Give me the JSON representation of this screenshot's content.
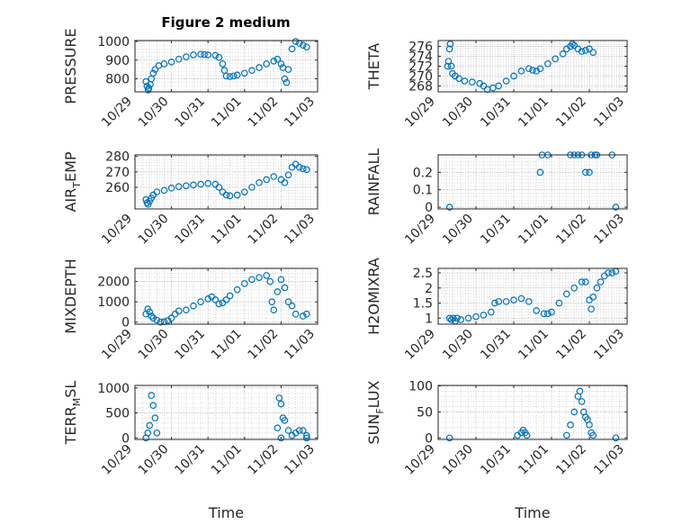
{
  "figure": {
    "title": "Figure 2 medium",
    "marker_color": "#0072BD",
    "grid": "on (major + minor dotted)",
    "layout": "4 rows x 2 columns"
  },
  "chart_data": [
    {
      "type": "scatter",
      "ylabel": "PRESSURE",
      "ylim": [
        730,
        1005
      ],
      "yticks": [
        800,
        900,
        1000
      ],
      "xlim": [
        "10/29",
        "11/03"
      ],
      "xticks": [
        "10/29",
        "10/30",
        "10/31",
        "11/01",
        "11/02",
        "11/03"
      ],
      "xlabel": "",
      "points": [
        [
          0.3,
          785
        ],
        [
          0.33,
          760
        ],
        [
          0.36,
          740
        ],
        [
          0.38,
          750
        ],
        [
          0.42,
          770
        ],
        [
          0.45,
          800
        ],
        [
          0.5,
          830
        ],
        [
          0.55,
          850
        ],
        [
          0.65,
          870
        ],
        [
          0.8,
          880
        ],
        [
          1.0,
          890
        ],
        [
          1.2,
          905
        ],
        [
          1.4,
          918
        ],
        [
          1.6,
          928
        ],
        [
          1.8,
          932
        ],
        [
          1.9,
          930
        ],
        [
          2.0,
          928
        ],
        [
          2.2,
          925
        ],
        [
          2.3,
          915
        ],
        [
          2.4,
          880
        ],
        [
          2.45,
          845
        ],
        [
          2.5,
          815
        ],
        [
          2.6,
          812
        ],
        [
          2.7,
          815
        ],
        [
          2.8,
          820
        ],
        [
          3.0,
          830
        ],
        [
          3.2,
          845
        ],
        [
          3.4,
          860
        ],
        [
          3.6,
          880
        ],
        [
          3.8,
          895
        ],
        [
          3.9,
          905
        ],
        [
          4.0,
          880
        ],
        [
          4.05,
          860
        ],
        [
          4.1,
          800
        ],
        [
          4.15,
          780
        ],
        [
          4.2,
          850
        ],
        [
          4.3,
          960
        ],
        [
          4.4,
          1000
        ],
        [
          4.5,
          990
        ],
        [
          4.6,
          980
        ],
        [
          4.7,
          970
        ]
      ]
    },
    {
      "type": "scatter",
      "ylabel": "THETA",
      "ylim": [
        266.8,
        277.2
      ],
      "yticks": [
        268,
        270,
        272,
        274,
        276
      ],
      "xlim": [
        "10/29",
        "11/03"
      ],
      "xticks": [
        "10/29",
        "10/30",
        "10/31",
        "11/01",
        "11/02",
        "11/03"
      ],
      "xlabel": "",
      "points": [
        [
          0.25,
          272
        ],
        [
          0.27,
          273
        ],
        [
          0.3,
          275.5
        ],
        [
          0.32,
          276.5
        ],
        [
          0.35,
          272
        ],
        [
          0.38,
          270.5
        ],
        [
          0.45,
          270
        ],
        [
          0.55,
          269.5
        ],
        [
          0.7,
          269
        ],
        [
          0.9,
          268.8
        ],
        [
          1.1,
          268.5
        ],
        [
          1.2,
          268
        ],
        [
          1.3,
          267.3
        ],
        [
          1.45,
          267.6
        ],
        [
          1.6,
          268
        ],
        [
          1.8,
          269
        ],
        [
          2.0,
          270
        ],
        [
          2.2,
          271
        ],
        [
          2.4,
          271.5
        ],
        [
          2.5,
          271.2
        ],
        [
          2.6,
          271
        ],
        [
          2.7,
          271.5
        ],
        [
          2.9,
          272.5
        ],
        [
          3.1,
          273.5
        ],
        [
          3.3,
          274.5
        ],
        [
          3.4,
          275.5
        ],
        [
          3.5,
          276
        ],
        [
          3.55,
          276.5
        ],
        [
          3.6,
          276.2
        ],
        [
          3.7,
          275.5
        ],
        [
          3.8,
          275
        ],
        [
          3.9,
          275.2
        ],
        [
          4.0,
          275.5
        ],
        [
          4.1,
          274.8
        ]
      ]
    },
    {
      "type": "scatter",
      "ylabel": "AIR_TEMP",
      "ylim": [
        246,
        281
      ],
      "yticks": [
        260,
        270,
        280
      ],
      "xlim": [
        "10/29",
        "11/03"
      ],
      "xticks": [
        "10/29",
        "10/30",
        "10/31",
        "11/01",
        "11/02",
        "11/03"
      ],
      "xlabel": "",
      "points": [
        [
          0.3,
          252
        ],
        [
          0.33,
          250
        ],
        [
          0.36,
          249
        ],
        [
          0.4,
          251
        ],
        [
          0.45,
          253
        ],
        [
          0.5,
          255
        ],
        [
          0.6,
          257
        ],
        [
          0.8,
          258
        ],
        [
          1.0,
          259.5
        ],
        [
          1.2,
          260.5
        ],
        [
          1.4,
          261
        ],
        [
          1.6,
          261.5
        ],
        [
          1.8,
          262
        ],
        [
          2.0,
          262.5
        ],
        [
          2.2,
          262
        ],
        [
          2.3,
          260
        ],
        [
          2.4,
          257
        ],
        [
          2.5,
          255
        ],
        [
          2.6,
          254.5
        ],
        [
          2.8,
          255
        ],
        [
          3.0,
          257
        ],
        [
          3.2,
          260
        ],
        [
          3.4,
          263
        ],
        [
          3.6,
          265
        ],
        [
          3.8,
          267
        ],
        [
          4.0,
          265
        ],
        [
          4.1,
          263
        ],
        [
          4.2,
          268
        ],
        [
          4.3,
          273
        ],
        [
          4.4,
          275
        ],
        [
          4.5,
          273
        ],
        [
          4.6,
          272
        ],
        [
          4.7,
          271.5
        ]
      ]
    },
    {
      "type": "scatter",
      "ylabel": "RAINFALL",
      "ylim": [
        -0.01,
        0.3
      ],
      "yticks": [
        0,
        0.1,
        0.2
      ],
      "xlim": [
        "10/29",
        "11/03"
      ],
      "xticks": [
        "10/29",
        "10/30",
        "10/31",
        "11/01",
        "11/02",
        "11/03"
      ],
      "xlabel": "",
      "points": [
        [
          0.3,
          0
        ],
        [
          4.7,
          0
        ],
        [
          2.7,
          0.2
        ],
        [
          2.75,
          0.3
        ],
        [
          2.9,
          0.3
        ],
        [
          3.5,
          0.3
        ],
        [
          3.6,
          0.3
        ],
        [
          3.7,
          0.3
        ],
        [
          3.8,
          0.3
        ],
        [
          3.9,
          0.2
        ],
        [
          4.0,
          0.2
        ],
        [
          4.05,
          0.3
        ],
        [
          4.15,
          0.3
        ],
        [
          4.2,
          0.3
        ],
        [
          4.6,
          0.3
        ]
      ]
    },
    {
      "type": "scatter",
      "ylabel": "MIXDEPTH",
      "ylim": [
        -100,
        2650
      ],
      "yticks": [
        0,
        1000,
        2000
      ],
      "xlim": [
        "10/29",
        "11/03"
      ],
      "xticks": [
        "10/29",
        "10/30",
        "10/31",
        "11/01",
        "11/02",
        "11/03"
      ],
      "xlabel": "",
      "points": [
        [
          0.3,
          400
        ],
        [
          0.35,
          650
        ],
        [
          0.4,
          500
        ],
        [
          0.45,
          300
        ],
        [
          0.5,
          200
        ],
        [
          0.6,
          100
        ],
        [
          0.7,
          0
        ],
        [
          0.8,
          20
        ],
        [
          0.9,
          80
        ],
        [
          1.0,
          200
        ],
        [
          1.1,
          400
        ],
        [
          1.2,
          550
        ],
        [
          1.4,
          600
        ],
        [
          1.6,
          800
        ],
        [
          1.8,
          1000
        ],
        [
          2.0,
          1150
        ],
        [
          2.1,
          1250
        ],
        [
          2.2,
          1100
        ],
        [
          2.3,
          900
        ],
        [
          2.4,
          950
        ],
        [
          2.5,
          1100
        ],
        [
          2.6,
          1300
        ],
        [
          2.8,
          1600
        ],
        [
          3.0,
          1900
        ],
        [
          3.2,
          2100
        ],
        [
          3.4,
          2200
        ],
        [
          3.6,
          2300
        ],
        [
          3.7,
          2000
        ],
        [
          3.75,
          1000
        ],
        [
          3.8,
          600
        ],
        [
          3.9,
          1500
        ],
        [
          4.0,
          2100
        ],
        [
          4.1,
          1700
        ],
        [
          4.2,
          1000
        ],
        [
          4.3,
          800
        ],
        [
          4.4,
          400
        ],
        [
          4.6,
          300
        ],
        [
          4.7,
          400
        ]
      ]
    },
    {
      "type": "scatter",
      "ylabel": "H2OMIXRA",
      "ylim": [
        0.8,
        2.65
      ],
      "yticks": [
        1,
        1.5,
        2,
        2.5
      ],
      "xlim": [
        "10/29",
        "11/03"
      ],
      "xticks": [
        "10/29",
        "10/30",
        "10/31",
        "11/01",
        "11/02",
        "11/03"
      ],
      "xlabel": "",
      "points": [
        [
          0.3,
          1.0
        ],
        [
          0.35,
          0.95
        ],
        [
          0.4,
          1.0
        ],
        [
          0.45,
          0.9
        ],
        [
          0.5,
          1.0
        ],
        [
          0.6,
          0.95
        ],
        [
          0.8,
          1.0
        ],
        [
          1.0,
          1.05
        ],
        [
          1.2,
          1.1
        ],
        [
          1.4,
          1.2
        ],
        [
          1.5,
          1.5
        ],
        [
          1.6,
          1.55
        ],
        [
          1.8,
          1.55
        ],
        [
          2.0,
          1.6
        ],
        [
          2.2,
          1.65
        ],
        [
          2.4,
          1.55
        ],
        [
          2.6,
          1.25
        ],
        [
          2.8,
          1.15
        ],
        [
          2.9,
          1.15
        ],
        [
          3.0,
          1.2
        ],
        [
          3.2,
          1.5
        ],
        [
          3.4,
          1.8
        ],
        [
          3.6,
          2.0
        ],
        [
          3.8,
          2.2
        ],
        [
          3.9,
          2.2
        ],
        [
          4.0,
          1.6
        ],
        [
          4.05,
          1.3
        ],
        [
          4.1,
          1.7
        ],
        [
          4.2,
          2.0
        ],
        [
          4.3,
          2.2
        ],
        [
          4.4,
          2.4
        ],
        [
          4.5,
          2.5
        ],
        [
          4.6,
          2.5
        ],
        [
          4.7,
          2.55
        ]
      ]
    },
    {
      "type": "scatter",
      "ylabel": "TERR_MSL",
      "ylim": [
        -30,
        1050
      ],
      "yticks": [
        0,
        500,
        1000
      ],
      "xlim": [
        "10/29",
        "11/03"
      ],
      "xticks": [
        "10/29",
        "10/30",
        "10/31",
        "11/01",
        "11/02",
        "11/03"
      ],
      "xlabel": "Time",
      "points": [
        [
          0.3,
          0
        ],
        [
          0.35,
          100
        ],
        [
          0.4,
          250
        ],
        [
          0.45,
          850
        ],
        [
          0.5,
          650
        ],
        [
          0.55,
          400
        ],
        [
          0.6,
          100
        ],
        [
          4.7,
          0
        ],
        [
          4.0,
          0
        ],
        [
          3.9,
          200
        ],
        [
          3.95,
          800
        ],
        [
          4.0,
          680
        ],
        [
          4.05,
          400
        ],
        [
          4.1,
          350
        ],
        [
          4.2,
          150
        ],
        [
          4.3,
          50
        ],
        [
          4.4,
          100
        ],
        [
          4.5,
          150
        ],
        [
          4.6,
          150
        ],
        [
          4.7,
          50
        ]
      ]
    },
    {
      "type": "scatter",
      "ylabel": "SUN_FLUX",
      "ylim": [
        -3,
        101
      ],
      "yticks": [
        0,
        50,
        100
      ],
      "xlim": [
        "10/29",
        "11/03"
      ],
      "xticks": [
        "10/29",
        "10/30",
        "10/31",
        "11/01",
        "11/02",
        "11/03"
      ],
      "xlabel": "Time",
      "points": [
        [
          0.3,
          0
        ],
        [
          4.7,
          0
        ],
        [
          2.1,
          5
        ],
        [
          2.2,
          10
        ],
        [
          2.25,
          15
        ],
        [
          2.3,
          10
        ],
        [
          2.35,
          5
        ],
        [
          3.4,
          5
        ],
        [
          3.5,
          25
        ],
        [
          3.6,
          50
        ],
        [
          3.7,
          80
        ],
        [
          3.75,
          90
        ],
        [
          3.8,
          70
        ],
        [
          3.85,
          50
        ],
        [
          3.9,
          40
        ],
        [
          3.95,
          35
        ],
        [
          4.0,
          25
        ],
        [
          4.05,
          10
        ],
        [
          4.1,
          5
        ]
      ]
    }
  ]
}
